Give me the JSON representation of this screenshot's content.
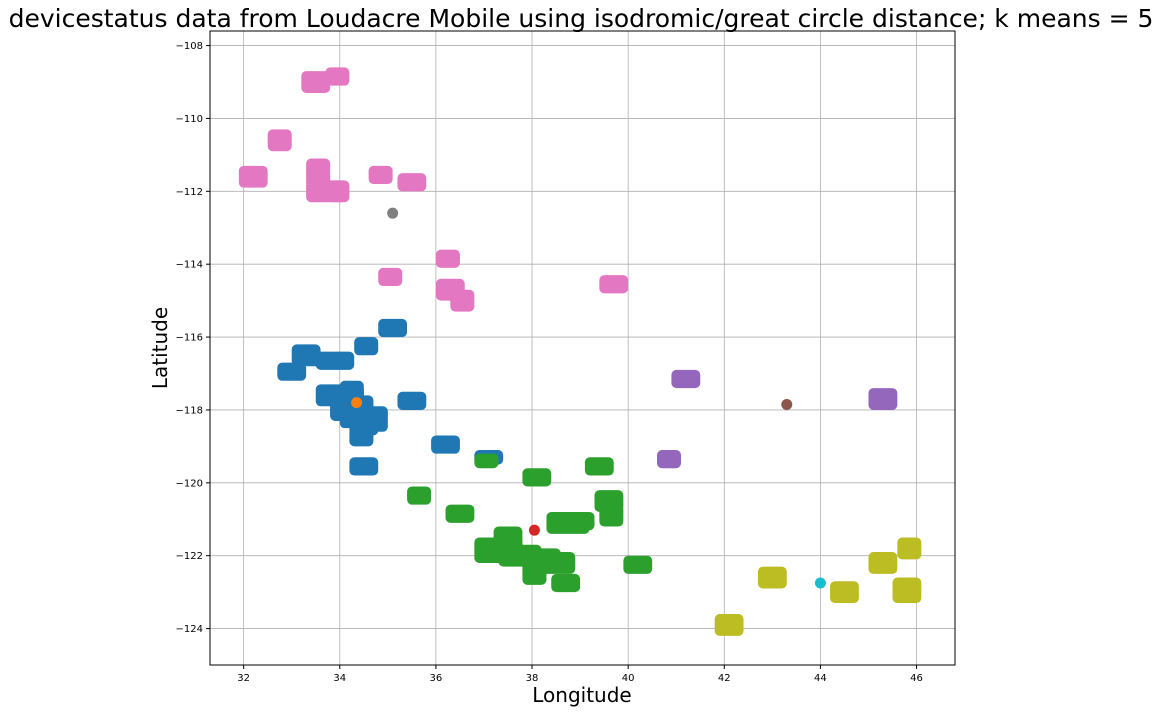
{
  "chart_data": {
    "type": "scatter",
    "title": "devicestatus data from Loudacre Mobile using isodromic/great circle distance; k means = 5",
    "xlabel": "Longitude",
    "ylabel": "Latitude",
    "xlim": [
      31.3,
      46.8
    ],
    "ylim": [
      -125.0,
      -107.6
    ],
    "xticks": [
      32,
      34,
      36,
      38,
      40,
      42,
      44,
      46
    ],
    "yticks": [
      -124,
      -122,
      -120,
      -118,
      -116,
      -114,
      -112,
      -110,
      -108
    ],
    "xtick_labels": [
      "32",
      "34",
      "36",
      "38",
      "40",
      "42",
      "44",
      "46"
    ],
    "ytick_labels": [
      "−124",
      "−122",
      "−120",
      "−118",
      "−116",
      "−114",
      "−112",
      "−110",
      "−108"
    ],
    "grid": true,
    "legend": "none",
    "clusters": [
      {
        "color": "#e377c2",
        "blocks": [
          {
            "x": [
              33.2,
              33.8
            ],
            "y": [
              -109.3,
              -108.7
            ]
          },
          {
            "x": [
              33.7,
              34.2
            ],
            "y": [
              -109.1,
              -108.6
            ]
          },
          {
            "x": [
              32.5,
              33.0
            ],
            "y": [
              -110.9,
              -110.3
            ]
          },
          {
            "x": [
              31.9,
              32.5
            ],
            "y": [
              -111.9,
              -111.3
            ]
          },
          {
            "x": [
              33.3,
              33.8
            ],
            "y": [
              -111.9,
              -111.1
            ]
          },
          {
            "x": [
              33.3,
              34.1
            ],
            "y": [
              -112.3,
              -111.7
            ]
          },
          {
            "x": [
              33.8,
              34.2
            ],
            "y": [
              -112.3,
              -111.7
            ]
          },
          {
            "x": [
              34.6,
              35.1
            ],
            "y": [
              -111.8,
              -111.3
            ]
          },
          {
            "x": [
              35.2,
              35.8
            ],
            "y": [
              -112.0,
              -111.5
            ]
          },
          {
            "x": [
              34.8,
              35.3
            ],
            "y": [
              -114.6,
              -114.1
            ]
          },
          {
            "x": [
              36.0,
              36.5
            ],
            "y": [
              -114.1,
              -113.6
            ]
          },
          {
            "x": [
              36.0,
              36.6
            ],
            "y": [
              -115.0,
              -114.4
            ]
          },
          {
            "x": [
              36.3,
              36.8
            ],
            "y": [
              -115.3,
              -114.7
            ]
          },
          {
            "x": [
              39.4,
              40.0
            ],
            "y": [
              -114.8,
              -114.3
            ]
          }
        ]
      },
      {
        "color": "#1f77b4",
        "blocks": [
          {
            "x": [
              34.8,
              35.4
            ],
            "y": [
              -116.0,
              -115.5
            ]
          },
          {
            "x": [
              34.3,
              34.8
            ],
            "y": [
              -116.5,
              -116.0
            ]
          },
          {
            "x": [
              33.0,
              33.6
            ],
            "y": [
              -116.8,
              -116.2
            ]
          },
          {
            "x": [
              33.5,
              34.3
            ],
            "y": [
              -116.9,
              -116.4
            ]
          },
          {
            "x": [
              32.7,
              33.3
            ],
            "y": [
              -117.2,
              -116.7
            ]
          },
          {
            "x": [
              33.5,
              34.5
            ],
            "y": [
              -117.9,
              -117.3
            ]
          },
          {
            "x": [
              33.8,
              34.7
            ],
            "y": [
              -118.3,
              -117.6
            ]
          },
          {
            "x": [
              34.0,
              34.5
            ],
            "y": [
              -118.5,
              -117.2
            ]
          },
          {
            "x": [
              33.8,
              34.3
            ],
            "y": [
              -118.3,
              -117.6
            ]
          },
          {
            "x": [
              34.2,
              34.8
            ],
            "y": [
              -118.7,
              -118.0
            ]
          },
          {
            "x": [
              34.5,
              35.0
            ],
            "y": [
              -118.6,
              -117.9
            ]
          },
          {
            "x": [
              34.2,
              34.7
            ],
            "y": [
              -119.0,
              -118.5
            ]
          },
          {
            "x": [
              35.2,
              35.8
            ],
            "y": [
              -118.0,
              -117.5
            ]
          },
          {
            "x": [
              34.2,
              34.8
            ],
            "y": [
              -119.8,
              -119.3
            ]
          },
          {
            "x": [
              35.9,
              36.5
            ],
            "y": [
              -119.2,
              -118.7
            ]
          },
          {
            "x": [
              36.8,
              37.4
            ],
            "y": [
              -119.5,
              -119.1
            ]
          }
        ]
      },
      {
        "color": "#2ca02c",
        "blocks": [
          {
            "x": [
              36.8,
              37.3
            ],
            "y": [
              -119.6,
              -119.2
            ]
          },
          {
            "x": [
              35.4,
              35.9
            ],
            "y": [
              -120.6,
              -120.1
            ]
          },
          {
            "x": [
              36.2,
              36.8
            ],
            "y": [
              -121.1,
              -120.6
            ]
          },
          {
            "x": [
              37.8,
              38.4
            ],
            "y": [
              -120.1,
              -119.6
            ]
          },
          {
            "x": [
              39.1,
              39.7
            ],
            "y": [
              -119.8,
              -119.3
            ]
          },
          {
            "x": [
              39.3,
              39.9
            ],
            "y": [
              -120.8,
              -120.2
            ]
          },
          {
            "x": [
              39.4,
              39.9
            ],
            "y": [
              -121.2,
              -120.6
            ]
          },
          {
            "x": [
              38.3,
              39.2
            ],
            "y": [
              -121.4,
              -120.8
            ]
          },
          {
            "x": [
              38.8,
              39.3
            ],
            "y": [
              -121.3,
              -120.8
            ]
          },
          {
            "x": [
              37.2,
              37.8
            ],
            "y": [
              -121.9,
              -121.2
            ]
          },
          {
            "x": [
              36.8,
              37.8
            ],
            "y": [
              -122.2,
              -121.5
            ]
          },
          {
            "x": [
              37.3,
              38.2
            ],
            "y": [
              -122.3,
              -121.7
            ]
          },
          {
            "x": [
              37.8,
              38.6
            ],
            "y": [
              -122.4,
              -121.8
            ]
          },
          {
            "x": [
              37.8,
              38.3
            ],
            "y": [
              -122.8,
              -122.1
            ]
          },
          {
            "x": [
              38.2,
              38.9
            ],
            "y": [
              -122.5,
              -121.9
            ]
          },
          {
            "x": [
              38.4,
              39.0
            ],
            "y": [
              -123.0,
              -122.5
            ]
          },
          {
            "x": [
              39.9,
              40.5
            ],
            "y": [
              -122.5,
              -122.0
            ]
          }
        ]
      },
      {
        "color": "#9467bd",
        "blocks": [
          {
            "x": [
              40.9,
              41.5
            ],
            "y": [
              -117.4,
              -116.9
            ]
          },
          {
            "x": [
              40.6,
              41.1
            ],
            "y": [
              -119.6,
              -119.1
            ]
          },
          {
            "x": [
              45.0,
              45.6
            ],
            "y": [
              -118.0,
              -117.4
            ]
          }
        ]
      },
      {
        "color": "#bcbd22",
        "blocks": [
          {
            "x": [
              41.8,
              42.4
            ],
            "y": [
              -124.2,
              -123.6
            ]
          },
          {
            "x": [
              42.7,
              43.3
            ],
            "y": [
              -122.9,
              -122.3
            ]
          },
          {
            "x": [
              44.2,
              44.8
            ],
            "y": [
              -123.3,
              -122.7
            ]
          },
          {
            "x": [
              45.0,
              45.6
            ],
            "y": [
              -122.5,
              -121.9
            ]
          },
          {
            "x": [
              45.6,
              46.1
            ],
            "y": [
              -122.1,
              -121.5
            ]
          },
          {
            "x": [
              45.5,
              46.1
            ],
            "y": [
              -123.3,
              -122.6
            ]
          }
        ]
      }
    ],
    "centers": [
      {
        "x": 35.1,
        "y": -112.6,
        "color": "#7f7f7f"
      },
      {
        "x": 34.35,
        "y": -117.8,
        "color": "#ff7f0e"
      },
      {
        "x": 38.05,
        "y": -121.3,
        "color": "#d62728"
      },
      {
        "x": 43.3,
        "y": -117.85,
        "color": "#8c564b"
      },
      {
        "x": 44.0,
        "y": -122.75,
        "color": "#17becf"
      }
    ]
  }
}
